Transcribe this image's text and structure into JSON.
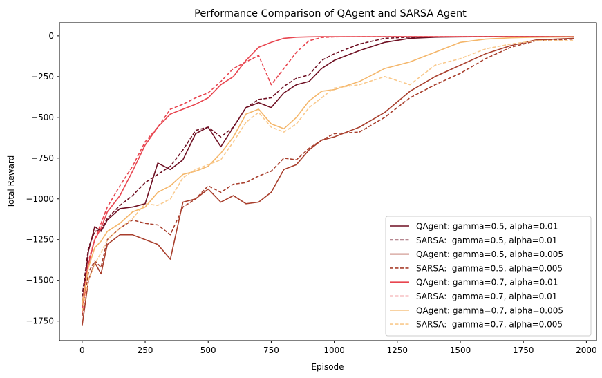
{
  "chart_data": {
    "type": "line",
    "title": "Performance Comparison of QAgent and SARSA Agent",
    "xlabel": "Episode",
    "ylabel": "Total Reward",
    "xlim": [
      -90,
      2040
    ],
    "ylim": [
      -1870,
      80
    ],
    "xticks": [
      0,
      250,
      500,
      750,
      1000,
      1250,
      1500,
      1750,
      2000
    ],
    "yticks": [
      0,
      -250,
      -500,
      -750,
      -1000,
      -1250,
      -1500,
      -1750
    ],
    "ytick_labels": [
      "0",
      "−250",
      "−500",
      "−750",
      "−1000",
      "−1250",
      "−1500",
      "−1750"
    ],
    "xtick_labels": [
      "0",
      "250",
      "500",
      "750",
      "1000",
      "1250",
      "1500",
      "1750",
      "2000"
    ],
    "grid": false,
    "legend_position": "lower right",
    "x": [
      0,
      25,
      50,
      75,
      100,
      150,
      200,
      250,
      300,
      350,
      400,
      450,
      500,
      550,
      600,
      650,
      700,
      750,
      800,
      850,
      900,
      950,
      1000,
      1100,
      1200,
      1300,
      1400,
      1500,
      1600,
      1700,
      1800,
      1950
    ],
    "series": [
      {
        "name": "QAgent: gamma=0.5, alpha=0.01",
        "color": "#6e0f22",
        "dash": "solid",
        "values": [
          -1660,
          -1320,
          -1170,
          -1200,
          -1130,
          -1060,
          -1050,
          -1030,
          -780,
          -820,
          -760,
          -600,
          -560,
          -680,
          -560,
          -440,
          -410,
          -440,
          -350,
          -300,
          -280,
          -200,
          -150,
          -90,
          -40,
          -15,
          -8,
          -6,
          -5,
          -5,
          -5,
          -5
        ]
      },
      {
        "name": "SARSA:  gamma=0.5, alpha=0.01",
        "color": "#6e0f22",
        "dash": "dashed",
        "values": [
          -1600,
          -1300,
          -1200,
          -1190,
          -1120,
          -1040,
          -980,
          -900,
          -850,
          -800,
          -700,
          -580,
          -560,
          -620,
          -560,
          -440,
          -390,
          -380,
          -310,
          -260,
          -240,
          -150,
          -110,
          -50,
          -15,
          -8,
          -6,
          -5,
          -5,
          -5,
          -5,
          -5
        ]
      },
      {
        "name": "QAgent: gamma=0.5, alpha=0.005",
        "color": "#a83e2c",
        "dash": "solid",
        "values": [
          -1780,
          -1500,
          -1390,
          -1460,
          -1280,
          -1220,
          -1220,
          -1250,
          -1280,
          -1370,
          -1020,
          -1000,
          -940,
          -1020,
          -980,
          -1030,
          -1020,
          -960,
          -820,
          -790,
          -700,
          -640,
          -620,
          -560,
          -470,
          -340,
          -250,
          -180,
          -110,
          -60,
          -25,
          -15
        ]
      },
      {
        "name": "SARSA:  gamma=0.5, alpha=0.005",
        "color": "#a83e2c",
        "dash": "dashed",
        "values": [
          -1720,
          -1450,
          -1380,
          -1420,
          -1250,
          -1180,
          -1130,
          -1150,
          -1160,
          -1220,
          -1050,
          -1000,
          -920,
          -960,
          -910,
          -900,
          -860,
          -830,
          -750,
          -760,
          -690,
          -640,
          -600,
          -590,
          -500,
          -380,
          -300,
          -230,
          -140,
          -70,
          -30,
          -20
        ]
      },
      {
        "name": "QAgent: gamma=0.7, alpha=0.01",
        "color": "#e8454f",
        "dash": "solid",
        "values": [
          -1700,
          -1400,
          -1250,
          -1180,
          -1080,
          -980,
          -830,
          -670,
          -560,
          -480,
          -450,
          -420,
          -380,
          -300,
          -250,
          -150,
          -70,
          -40,
          -15,
          -8,
          -6,
          -5,
          -5,
          -5,
          -5,
          -5,
          -5,
          -5,
          -5,
          -5,
          -5,
          -5
        ]
      },
      {
        "name": "SARSA:  gamma=0.7, alpha=0.01",
        "color": "#e8454f",
        "dash": "dashed",
        "values": [
          -1650,
          -1380,
          -1250,
          -1150,
          -1050,
          -920,
          -800,
          -650,
          -560,
          -450,
          -420,
          -380,
          -350,
          -280,
          -200,
          -160,
          -120,
          -300,
          -200,
          -100,
          -30,
          -10,
          -6,
          -5,
          -5,
          -5,
          -5,
          -5,
          -5,
          -5,
          -5,
          -5
        ]
      },
      {
        "name": "QAgent: gamma=0.7, alpha=0.005",
        "color": "#f4b66a",
        "dash": "solid",
        "values": [
          -1650,
          -1420,
          -1300,
          -1260,
          -1200,
          -1150,
          -1080,
          -1050,
          -960,
          -920,
          -850,
          -830,
          -800,
          -720,
          -620,
          -480,
          -450,
          -540,
          -570,
          -500,
          -400,
          -340,
          -330,
          -280,
          -200,
          -160,
          -100,
          -40,
          -20,
          -12,
          -8,
          -6
        ]
      },
      {
        "name": "SARSA:  gamma=0.7, alpha=0.005",
        "color": "#f9c98c",
        "dash": "dashed",
        "values": [
          -1690,
          -1500,
          -1400,
          -1330,
          -1250,
          -1180,
          -1120,
          -1030,
          -1040,
          -1000,
          -870,
          -820,
          -790,
          -760,
          -650,
          -530,
          -470,
          -560,
          -590,
          -540,
          -440,
          -380,
          -320,
          -300,
          -250,
          -300,
          -180,
          -140,
          -80,
          -50,
          -30,
          -30
        ]
      }
    ]
  }
}
